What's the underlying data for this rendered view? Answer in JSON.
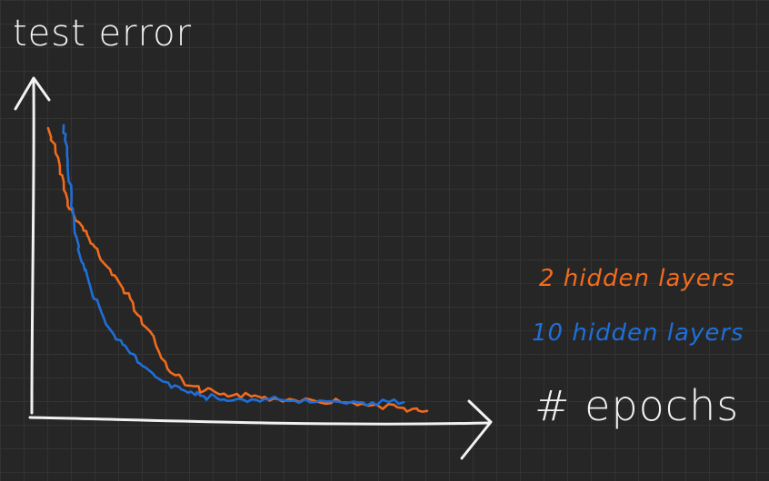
{
  "chart_data": {
    "type": "line",
    "title": "",
    "xlabel": "# epochs",
    "ylabel": "test error",
    "x_ticks": [],
    "y_ticks": [],
    "xlim": [
      0,
      100
    ],
    "ylim": [
      0,
      100
    ],
    "grid": true,
    "legend_position": "right",
    "legend_style": "text labels colored like their series",
    "series": [
      {
        "name": "2 hidden layers",
        "color": "#f26b1d",
        "x": [
          3,
          6,
          8,
          10,
          13,
          16,
          20,
          24,
          28,
          33,
          38,
          43,
          48,
          55,
          62,
          70,
          78,
          86,
          94,
          100
        ],
        "y": [
          99,
          86,
          74,
          67,
          62,
          55,
          48,
          40,
          30,
          18,
          10,
          8,
          7,
          6,
          5,
          5,
          4,
          3,
          2,
          1
        ]
      },
      {
        "name": "10 hidden layers",
        "color": "#1e6fd9",
        "x": [
          7,
          8,
          9,
          10,
          12,
          14,
          17,
          20,
          24,
          28,
          33,
          38,
          43,
          48,
          55,
          62,
          70,
          78,
          86,
          94
        ],
        "y": [
          100,
          88,
          74,
          62,
          52,
          43,
          34,
          27,
          21,
          16,
          11,
          8,
          6,
          5,
          5,
          5,
          4,
          4,
          4,
          4
        ]
      }
    ]
  },
  "canvas": {
    "background": "#262626",
    "grid_color": "#333333",
    "axis_color": "#f2f2f2"
  }
}
